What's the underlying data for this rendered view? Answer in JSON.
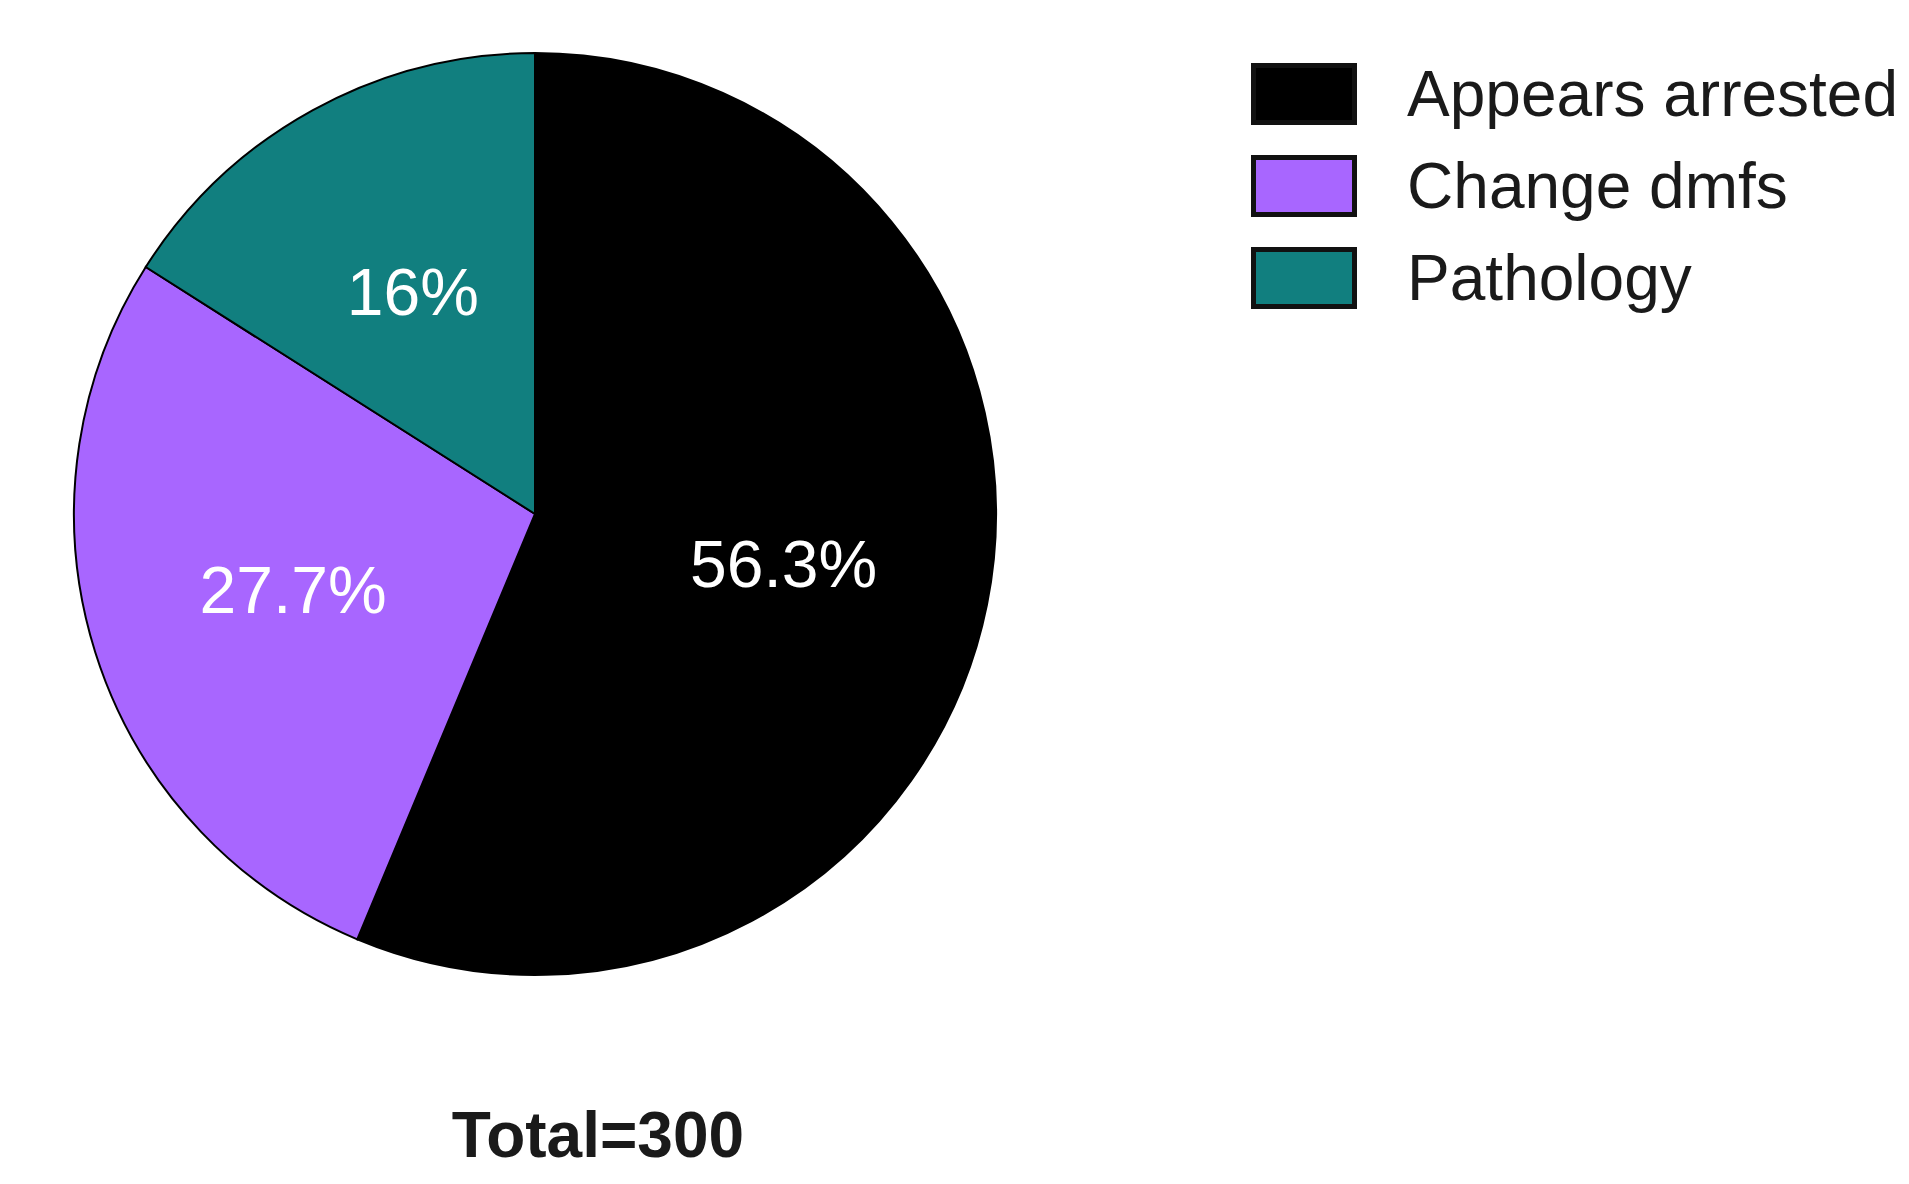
{
  "chart_data": {
    "type": "pie",
    "categories": [
      "Appears arrested",
      "Change dmfs",
      "Pathology"
    ],
    "values": [
      56.3,
      27.7,
      16
    ],
    "value_labels": [
      "56.3%",
      "27.7%",
      "16%"
    ],
    "colors": [
      "#000000",
      "#a866ff",
      "#117f7f"
    ],
    "legend": "top right",
    "annotations": [
      "Total=300"
    ]
  }
}
